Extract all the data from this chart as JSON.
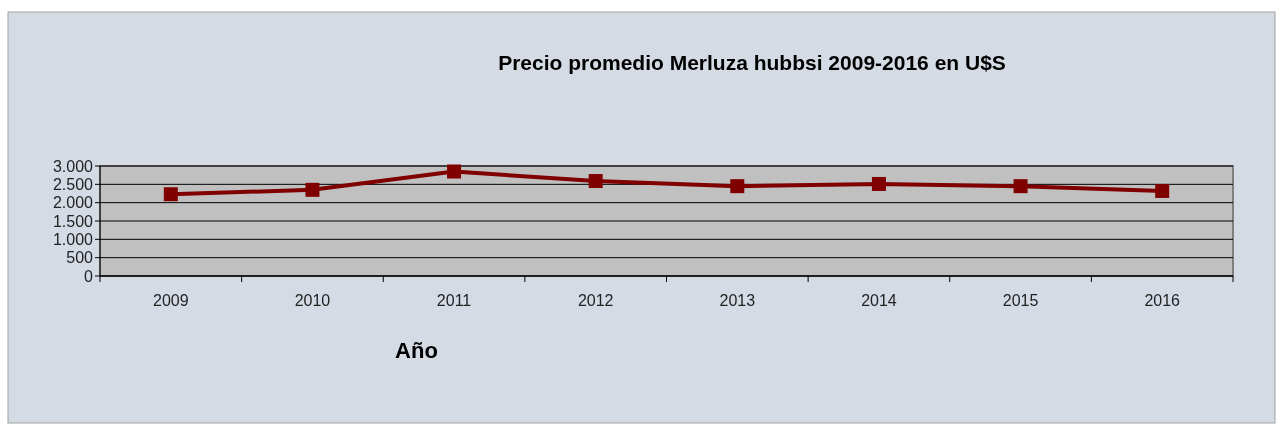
{
  "chart_data": {
    "type": "line",
    "title": "Precio promedio Merluza hubbsi 2009-2016 en U$S",
    "xlabel": "Año",
    "categories": [
      "2009",
      "2010",
      "2011",
      "2012",
      "2013",
      "2014",
      "2015",
      "2016"
    ],
    "series": [
      {
        "color": "#800000",
        "values": [
          2230,
          2350,
          2850,
          2590,
          2450,
          2510,
          2450,
          2320
        ]
      }
    ],
    "ylim": [
      0,
      3000
    ],
    "yticks": [
      0,
      500,
      {
        "value": 1000,
        "label": "1.000"
      },
      {
        "value": 1500,
        "label": "1.500"
      },
      {
        "value": 2000,
        "label": "2.000"
      },
      {
        "value": 2500,
        "label": "2.500"
      },
      {
        "value": 3000,
        "label": "3.000"
      }
    ],
    "grid": "y",
    "marker": "square",
    "line_style": "solid"
  }
}
